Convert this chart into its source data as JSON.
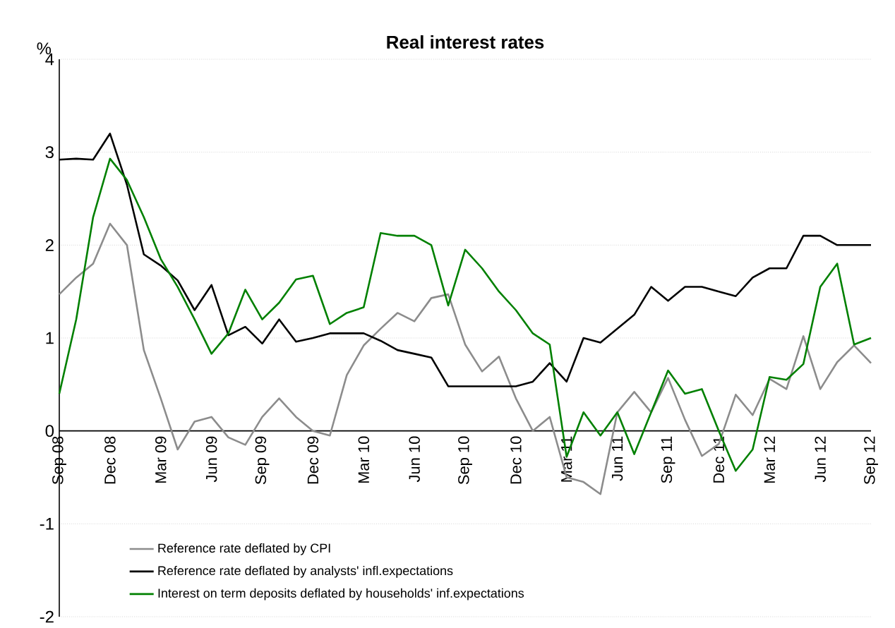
{
  "chart_data": {
    "type": "line",
    "title": "Real interest rates",
    "ylabel": "%",
    "categories": [
      "Sep 08",
      null,
      null,
      "Dec 08",
      null,
      null,
      "Mar 09",
      null,
      null,
      "Jun 09",
      null,
      null,
      "Sep 09",
      null,
      null,
      "Dec 09",
      null,
      null,
      "Mar 10",
      null,
      null,
      "Jun 10",
      null,
      null,
      "Sep 10",
      null,
      null,
      "Dec 10",
      null,
      null,
      "Mar 11",
      null,
      null,
      "Jun 11",
      null,
      null,
      "Sep 11",
      null,
      null,
      "Dec 11",
      null,
      null,
      "Mar 12",
      null,
      null,
      "Jun 12",
      null,
      null,
      "Sep 12"
    ],
    "series": [
      {
        "name": "Reference rate deflated by CPI",
        "color": "#8c8c8c",
        "values": [
          1.47,
          1.65,
          1.8,
          2.23,
          2.0,
          0.87,
          0.35,
          -0.2,
          0.1,
          0.15,
          -0.07,
          -0.15,
          0.15,
          0.35,
          0.15,
          0.0,
          -0.05,
          0.6,
          0.92,
          1.1,
          1.27,
          1.18,
          1.43,
          1.47,
          0.93,
          0.64,
          0.8,
          0.35,
          0.0,
          0.15,
          -0.5,
          -0.55,
          -0.68,
          0.2,
          0.42,
          0.2,
          0.57,
          0.12,
          -0.27,
          -0.14,
          0.39,
          0.17,
          0.56,
          0.45,
          1.02,
          0.45,
          0.74,
          0.92,
          0.73
        ]
      },
      {
        "name": "Reference rate deflated by analysts' infl.expectations",
        "color": "#000000",
        "values": [
          2.92,
          2.93,
          2.92,
          3.2,
          2.65,
          1.9,
          1.78,
          1.62,
          1.3,
          1.57,
          1.03,
          1.12,
          0.94,
          1.2,
          0.96,
          1.0,
          1.05,
          1.05,
          1.05,
          0.97,
          0.87,
          0.83,
          0.79,
          0.48,
          0.48,
          0.48,
          0.48,
          0.48,
          0.53,
          0.73,
          0.53,
          1.0,
          0.95,
          1.1,
          1.25,
          1.55,
          1.4,
          1.55,
          1.55,
          1.5,
          1.45,
          1.65,
          1.75,
          1.75,
          2.1,
          2.1,
          2.0,
          2.0,
          2.0
        ]
      },
      {
        "name": "Interest on term deposits deflated by households' inf.expectations",
        "color": "#008000",
        "values": [
          0.4,
          1.2,
          2.3,
          2.93,
          2.7,
          2.3,
          1.85,
          1.55,
          1.2,
          0.83,
          1.05,
          1.52,
          1.2,
          1.38,
          1.63,
          1.67,
          1.15,
          1.27,
          1.33,
          2.13,
          2.1,
          2.1,
          2.0,
          1.35,
          1.95,
          1.75,
          1.5,
          1.3,
          1.05,
          0.93,
          -0.28,
          0.2,
          -0.05,
          0.2,
          -0.25,
          0.2,
          0.65,
          0.4,
          0.45,
          0.0,
          -0.43,
          -0.2,
          0.58,
          0.55,
          0.72,
          1.55,
          1.8,
          0.93,
          1.0
        ]
      }
    ],
    "ylim": [
      -2,
      4
    ],
    "yticks": [
      -2,
      -1,
      0,
      1,
      2,
      3,
      4
    ],
    "grid": "y",
    "legend": "bottom",
    "marker": "none",
    "line_style": "solid"
  }
}
